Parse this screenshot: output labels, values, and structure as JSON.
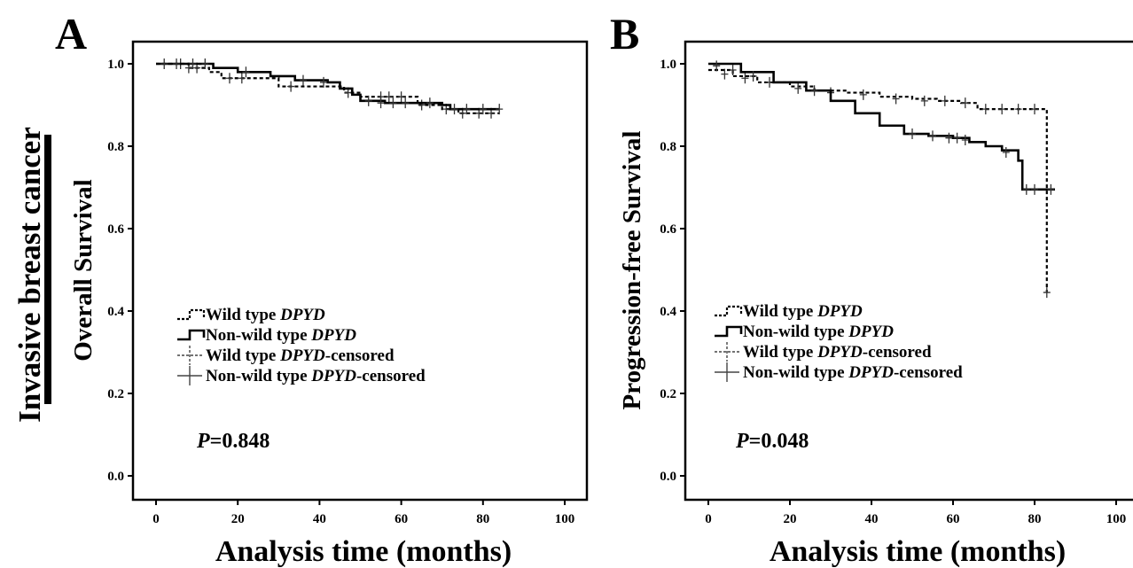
{
  "figure": {
    "side_title": "Invasive breast cancer",
    "tick_labels_y": [
      "0.0",
      "0.2",
      "0.4",
      "0.6",
      "0.8",
      "1.0"
    ],
    "tick_labels_x": [
      "0",
      "20",
      "40",
      "60",
      "80",
      "100"
    ]
  },
  "chart_data": [
    {
      "type": "line",
      "panel_label": "A",
      "title": "",
      "xlabel": "Analysis time (months)",
      "ylabel": "Overall Survival",
      "xlim": [
        0,
        100
      ],
      "ylim": [
        0,
        1.0
      ],
      "p_value": {
        "prefix": "P",
        "value": "=0.848"
      },
      "legend": [
        {
          "text": "Wild type ",
          "italic": "DPYD",
          "suffix": ""
        },
        {
          "text": "Non-wild type ",
          "italic": "DPYD",
          "suffix": ""
        },
        {
          "text": "Wild type ",
          "italic": "DPYD",
          "suffix": "-censored"
        },
        {
          "text": "Non-wild type ",
          "italic": "DPYD",
          "suffix": "-censored"
        }
      ],
      "series": [
        {
          "style": "dashed",
          "points": [
            [
              0,
              1.0
            ],
            [
              6,
              1.0
            ],
            [
              8,
              0.99
            ],
            [
              13,
              0.98
            ],
            [
              16,
              0.965
            ],
            [
              24,
              0.965
            ],
            [
              30,
              0.945
            ],
            [
              42,
              0.945
            ],
            [
              46,
              0.93
            ],
            [
              50,
              0.92
            ],
            [
              58,
              0.92
            ],
            [
              64,
              0.9
            ],
            [
              70,
              0.89
            ],
            [
              74,
              0.88
            ],
            [
              84,
              0.88
            ]
          ],
          "censored": [
            [
              6,
              1.0
            ],
            [
              8,
              0.99
            ],
            [
              10,
              0.99
            ],
            [
              18,
              0.965
            ],
            [
              21,
              0.965
            ],
            [
              33,
              0.945
            ],
            [
              47,
              0.93
            ],
            [
              55,
              0.92
            ],
            [
              57,
              0.92
            ],
            [
              60,
              0.92
            ],
            [
              65,
              0.9
            ],
            [
              71,
              0.89
            ],
            [
              75,
              0.88
            ],
            [
              79,
              0.88
            ],
            [
              82,
              0.88
            ]
          ]
        },
        {
          "style": "solid",
          "points": [
            [
              0,
              1.0
            ],
            [
              10,
              1.0
            ],
            [
              14,
              0.99
            ],
            [
              20,
              0.98
            ],
            [
              28,
              0.97
            ],
            [
              34,
              0.96
            ],
            [
              42,
              0.955
            ],
            [
              45,
              0.94
            ],
            [
              48,
              0.925
            ],
            [
              50,
              0.91
            ],
            [
              56,
              0.905
            ],
            [
              64,
              0.905
            ],
            [
              70,
              0.9
            ],
            [
              72,
              0.89
            ],
            [
              84,
              0.89
            ]
          ],
          "censored": [
            [
              2,
              1.0
            ],
            [
              5,
              1.0
            ],
            [
              9,
              1.0
            ],
            [
              12,
              1.0
            ],
            [
              22,
              0.98
            ],
            [
              36,
              0.96
            ],
            [
              41,
              0.955
            ],
            [
              52,
              0.91
            ],
            [
              55,
              0.905
            ],
            [
              58,
              0.905
            ],
            [
              61,
              0.905
            ],
            [
              67,
              0.905
            ],
            [
              73,
              0.89
            ],
            [
              76,
              0.89
            ],
            [
              80,
              0.89
            ],
            [
              84,
              0.89
            ]
          ]
        }
      ]
    },
    {
      "type": "line",
      "panel_label": "B",
      "title": "",
      "xlabel": "Analysis time (months)",
      "ylabel": "Progression-free Survival",
      "xlim": [
        0,
        100
      ],
      "ylim": [
        0,
        1.0
      ],
      "p_value": {
        "prefix": "P",
        "value": "=0.048"
      },
      "legend": [
        {
          "text": "Wild type ",
          "italic": "DPYD",
          "suffix": ""
        },
        {
          "text": "Non-wild type ",
          "italic": "DPYD",
          "suffix": ""
        },
        {
          "text": "Wild type ",
          "italic": "DPYD",
          "suffix": "-censored"
        },
        {
          "text": "Non-wild type ",
          "italic": "DPYD",
          "suffix": "-censored"
        }
      ],
      "series": [
        {
          "style": "dashed",
          "points": [
            [
              0,
              0.985
            ],
            [
              6,
              0.97
            ],
            [
              12,
              0.955
            ],
            [
              20,
              0.945
            ],
            [
              26,
              0.935
            ],
            [
              34,
              0.93
            ],
            [
              42,
              0.92
            ],
            [
              50,
              0.915
            ],
            [
              56,
              0.91
            ],
            [
              62,
              0.905
            ],
            [
              66,
              0.89
            ],
            [
              70,
              0.89
            ],
            [
              83,
              0.89
            ],
            [
              83,
              0.445
            ]
          ],
          "censored": [
            [
              4,
              0.975
            ],
            [
              9,
              0.965
            ],
            [
              15,
              0.955
            ],
            [
              22,
              0.94
            ],
            [
              30,
              0.93
            ],
            [
              38,
              0.925
            ],
            [
              46,
              0.915
            ],
            [
              53,
              0.91
            ],
            [
              58,
              0.91
            ],
            [
              63,
              0.905
            ],
            [
              68,
              0.89
            ],
            [
              72,
              0.89
            ],
            [
              76,
              0.89
            ],
            [
              80,
              0.89
            ],
            [
              83,
              0.445
            ]
          ]
        },
        {
          "style": "solid",
          "points": [
            [
              0,
              1.0
            ],
            [
              8,
              0.98
            ],
            [
              16,
              0.955
            ],
            [
              24,
              0.935
            ],
            [
              30,
              0.91
            ],
            [
              36,
              0.88
            ],
            [
              42,
              0.85
            ],
            [
              48,
              0.83
            ],
            [
              54,
              0.825
            ],
            [
              60,
              0.82
            ],
            [
              64,
              0.81
            ],
            [
              68,
              0.8
            ],
            [
              72,
              0.79
            ],
            [
              76,
              0.765
            ],
            [
              77,
              0.695
            ],
            [
              85,
              0.695
            ]
          ],
          "censored": [
            [
              2,
              0.995
            ],
            [
              6,
              0.985
            ],
            [
              11,
              0.97
            ],
            [
              26,
              0.935
            ],
            [
              50,
              0.83
            ],
            [
              55,
              0.825
            ],
            [
              59,
              0.82
            ],
            [
              61,
              0.82
            ],
            [
              63,
              0.815
            ],
            [
              73,
              0.785
            ],
            [
              78,
              0.695
            ],
            [
              80,
              0.695
            ],
            [
              84,
              0.695
            ]
          ]
        }
      ]
    }
  ]
}
